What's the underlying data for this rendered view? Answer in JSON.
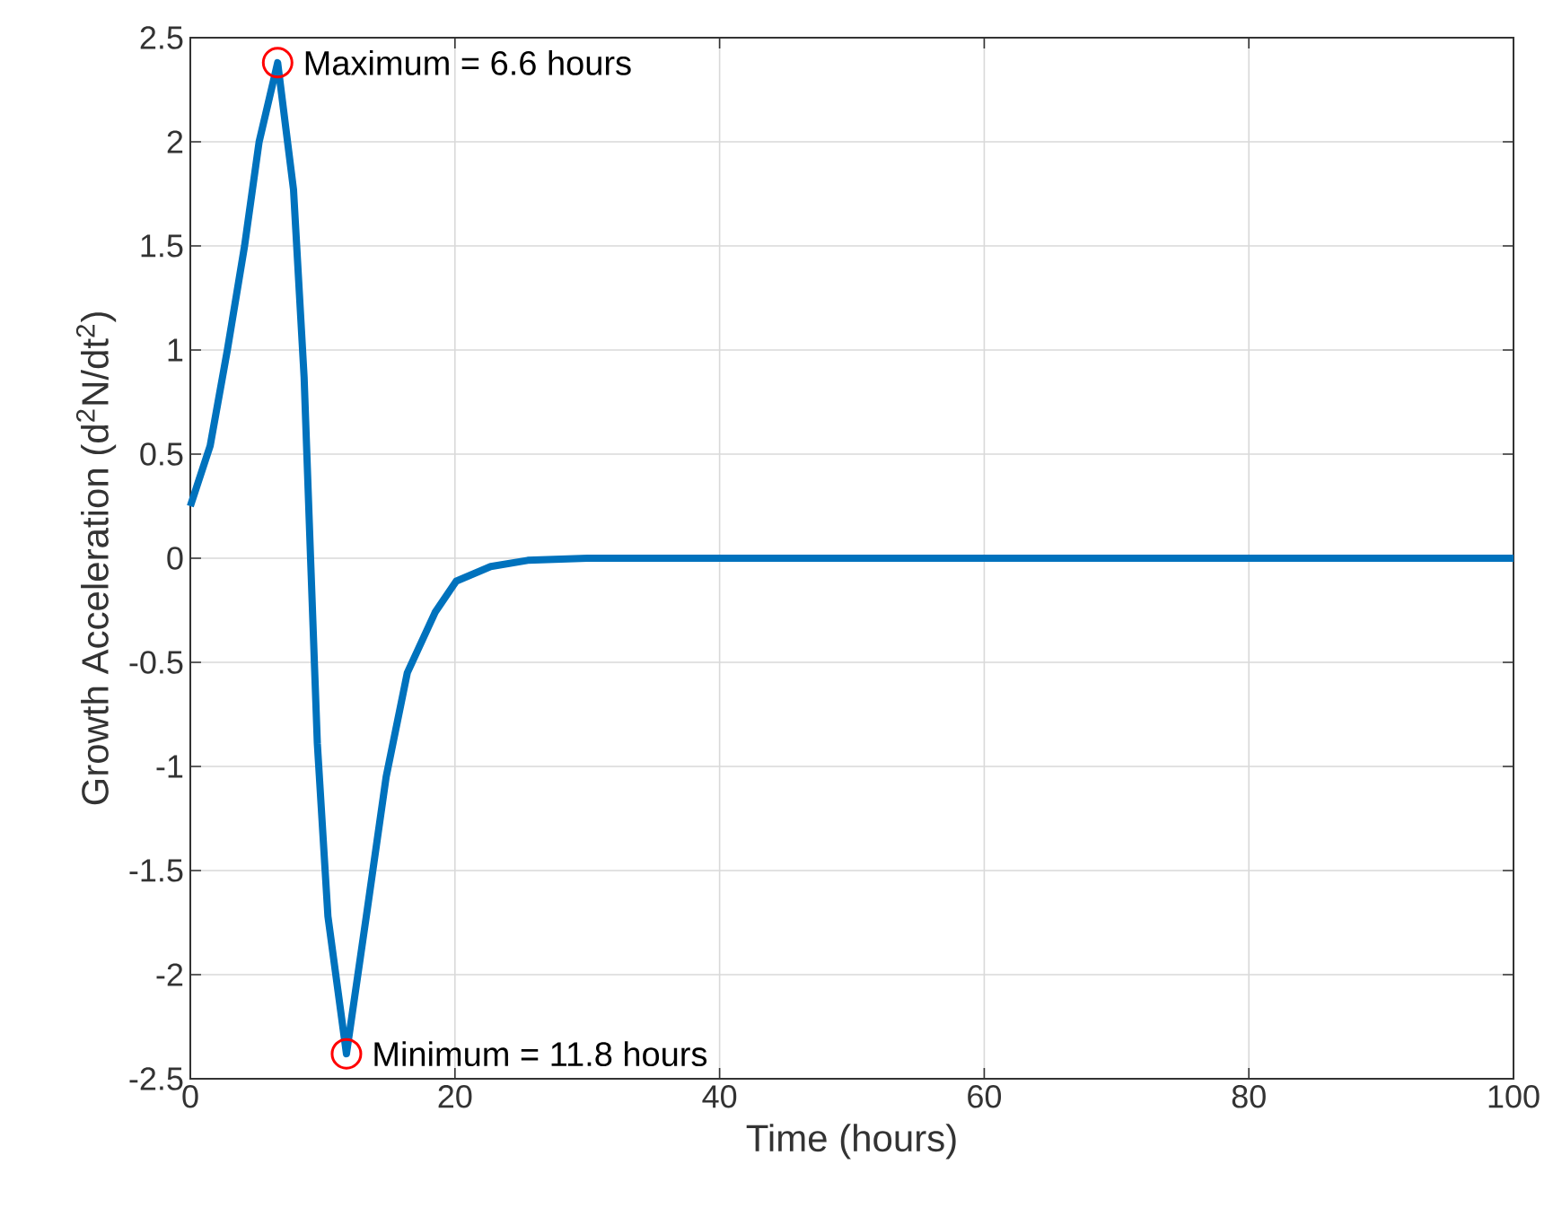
{
  "chart_data": {
    "type": "line",
    "xlabel": "Time (hours)",
    "ylabel": "Growth Acceleration (d$^{2}$N/dt$^{2}$)",
    "xlim": [
      0,
      100
    ],
    "ylim": [
      -2.5,
      2.5
    ],
    "xticks": [
      0,
      20,
      40,
      60,
      80,
      100
    ],
    "yticks": [
      -2.5,
      -2,
      -1.5,
      -1,
      -0.5,
      0,
      0.5,
      1,
      1.5,
      2,
      2.5
    ],
    "grid": true,
    "series": [
      {
        "color": "#0072bd",
        "marker": "none",
        "line_style": "solid",
        "x": [
          0,
          1.5,
          2.8,
          4.1,
          5.2,
          6.6,
          7.8,
          8.6,
          9.1,
          9.6,
          10.4,
          11.8,
          13.3,
          14.8,
          16.4,
          18.5,
          20.1,
          22.7,
          25.5,
          30,
          40,
          60,
          80,
          100
        ],
        "values": [
          0.25,
          0.54,
          1.0,
          1.5,
          2.0,
          2.38,
          1.77,
          0.87,
          -0.02,
          -0.89,
          -1.72,
          -2.38,
          -1.72,
          -1.05,
          -0.55,
          -0.26,
          -0.11,
          -0.04,
          -0.01,
          0,
          0,
          0,
          0,
          0
        ]
      },
      {
        "type": "scatter",
        "color": "#ff0000",
        "marker": "circle",
        "x": [
          6.6,
          11.8
        ],
        "values": [
          2.38,
          -2.38
        ]
      }
    ],
    "annotations": [
      {
        "text": "Maximum = 6.6 hours",
        "x": 6.6,
        "y": 2.38
      },
      {
        "text": "Minimum = 11.8 hours",
        "x": 11.8,
        "y": -2.38
      }
    ]
  }
}
